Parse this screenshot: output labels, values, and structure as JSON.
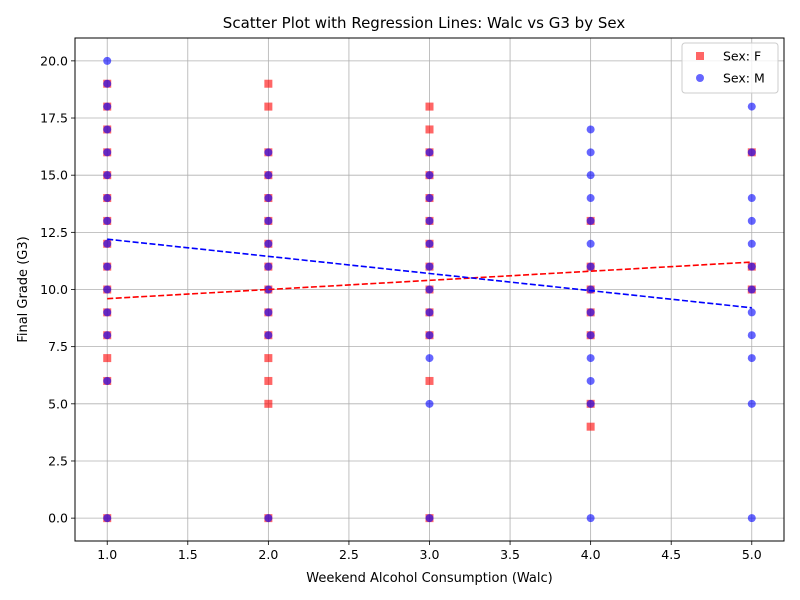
{
  "chart_data": {
    "type": "scatter",
    "title": "Scatter Plot with Regression Lines: Walc vs G3 by Sex",
    "xlabel": "Weekend Alcohol Consumption (Walc)",
    "ylabel": "Final Grade (G3)",
    "xlim": [
      0.8,
      5.2
    ],
    "ylim": [
      -1,
      21
    ],
    "x_ticks": [
      "1.0",
      "1.5",
      "2.0",
      "2.5",
      "3.0",
      "3.5",
      "4.0",
      "4.5",
      "5.0"
    ],
    "y_ticks": [
      "0.0",
      "2.5",
      "5.0",
      "7.5",
      "10.0",
      "12.5",
      "15.0",
      "17.5",
      "20.0"
    ],
    "grid": true,
    "legend_position": "top-right",
    "series": [
      {
        "name": "Sex: F",
        "color": "#ff0000",
        "marker": "square",
        "points": [
          [
            1,
            0
          ],
          [
            1,
            6
          ],
          [
            1,
            7
          ],
          [
            1,
            8
          ],
          [
            1,
            9
          ],
          [
            1,
            10
          ],
          [
            1,
            11
          ],
          [
            1,
            12
          ],
          [
            1,
            13
          ],
          [
            1,
            14
          ],
          [
            1,
            15
          ],
          [
            1,
            16
          ],
          [
            1,
            17
          ],
          [
            1,
            18
          ],
          [
            1,
            19
          ],
          [
            2,
            0
          ],
          [
            2,
            5
          ],
          [
            2,
            6
          ],
          [
            2,
            7
          ],
          [
            2,
            8
          ],
          [
            2,
            9
          ],
          [
            2,
            10
          ],
          [
            2,
            11
          ],
          [
            2,
            12
          ],
          [
            2,
            13
          ],
          [
            2,
            14
          ],
          [
            2,
            15
          ],
          [
            2,
            16
          ],
          [
            2,
            18
          ],
          [
            2,
            19
          ],
          [
            3,
            0
          ],
          [
            3,
            6
          ],
          [
            3,
            8
          ],
          [
            3,
            9
          ],
          [
            3,
            10
          ],
          [
            3,
            11
          ],
          [
            3,
            12
          ],
          [
            3,
            13
          ],
          [
            3,
            14
          ],
          [
            3,
            15
          ],
          [
            3,
            16
          ],
          [
            3,
            17
          ],
          [
            3,
            18
          ],
          [
            4,
            4
          ],
          [
            4,
            5
          ],
          [
            4,
            8
          ],
          [
            4,
            9
          ],
          [
            4,
            10
          ],
          [
            4,
            11
          ],
          [
            4,
            13
          ],
          [
            5,
            10
          ],
          [
            5,
            11
          ],
          [
            5,
            16
          ]
        ],
        "regression": {
          "x": [
            1,
            5
          ],
          "y": [
            9.6,
            11.2
          ]
        }
      },
      {
        "name": "Sex: M",
        "color": "#0000ff",
        "marker": "circle",
        "points": [
          [
            1,
            0
          ],
          [
            1,
            6
          ],
          [
            1,
            8
          ],
          [
            1,
            9
          ],
          [
            1,
            10
          ],
          [
            1,
            11
          ],
          [
            1,
            12
          ],
          [
            1,
            13
          ],
          [
            1,
            14
          ],
          [
            1,
            15
          ],
          [
            1,
            16
          ],
          [
            1,
            17
          ],
          [
            1,
            18
          ],
          [
            1,
            19
          ],
          [
            1,
            20
          ],
          [
            2,
            0
          ],
          [
            2,
            8
          ],
          [
            2,
            9
          ],
          [
            2,
            10
          ],
          [
            2,
            11
          ],
          [
            2,
            12
          ],
          [
            2,
            13
          ],
          [
            2,
            14
          ],
          [
            2,
            15
          ],
          [
            2,
            16
          ],
          [
            3,
            0
          ],
          [
            3,
            5
          ],
          [
            3,
            7
          ],
          [
            3,
            8
          ],
          [
            3,
            9
          ],
          [
            3,
            10
          ],
          [
            3,
            11
          ],
          [
            3,
            12
          ],
          [
            3,
            13
          ],
          [
            3,
            14
          ],
          [
            3,
            15
          ],
          [
            3,
            16
          ],
          [
            4,
            0
          ],
          [
            4,
            5
          ],
          [
            4,
            6
          ],
          [
            4,
            7
          ],
          [
            4,
            8
          ],
          [
            4,
            9
          ],
          [
            4,
            10
          ],
          [
            4,
            11
          ],
          [
            4,
            12
          ],
          [
            4,
            13
          ],
          [
            4,
            14
          ],
          [
            4,
            15
          ],
          [
            4,
            16
          ],
          [
            4,
            17
          ],
          [
            5,
            0
          ],
          [
            5,
            5
          ],
          [
            5,
            7
          ],
          [
            5,
            8
          ],
          [
            5,
            9
          ],
          [
            5,
            10
          ],
          [
            5,
            11
          ],
          [
            5,
            12
          ],
          [
            5,
            13
          ],
          [
            5,
            14
          ],
          [
            5,
            16
          ],
          [
            5,
            18
          ]
        ],
        "regression": {
          "x": [
            1,
            5
          ],
          "y": [
            12.2,
            9.2
          ]
        }
      }
    ]
  }
}
